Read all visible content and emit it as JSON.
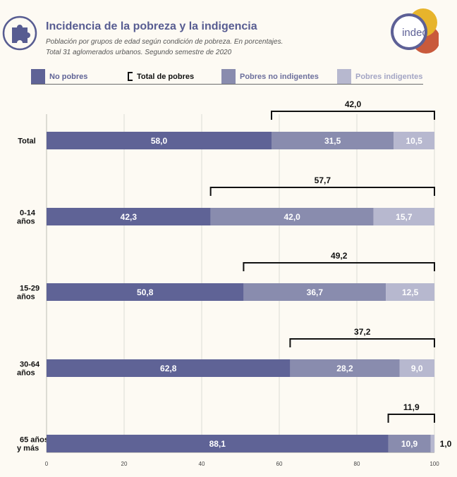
{
  "header": {
    "title": "Incidencia de la pobreza y la indigencia",
    "subtitle_line1": "Población por grupos de edad según condición de pobreza. En porcentajes.",
    "subtitle_line2": "Total 31 aglomerados urbanos. Segundo semestre de 2020",
    "logo_text": "indec"
  },
  "legend": [
    {
      "label": "No pobres",
      "color": "#5f6396",
      "kind": "swatch"
    },
    {
      "label": "Total de pobres",
      "color": "#111111",
      "kind": "bracket"
    },
    {
      "label": "Pobres no indigentes",
      "color": "#898cae",
      "kind": "swatch"
    },
    {
      "label": "Pobres indigentes",
      "color": "#b7b8cf",
      "kind": "swatch"
    }
  ],
  "chart_data": {
    "type": "bar",
    "orientation": "horizontal",
    "stacked": true,
    "categories": [
      "Total",
      "0-14\naños",
      "15-29\naños",
      "30-64\naños",
      "65 años\ny más"
    ],
    "series": [
      {
        "name": "No pobres",
        "values": [
          58.0,
          42.3,
          50.8,
          62.8,
          88.1
        ],
        "labels": [
          "58,0",
          "42,3",
          "50,8",
          "62,8",
          "88,1"
        ],
        "color": "#5f6396"
      },
      {
        "name": "Pobres no indigentes",
        "values": [
          31.5,
          42.0,
          36.7,
          28.2,
          10.9
        ],
        "labels": [
          "31,5",
          "42,0",
          "36,7",
          "28,2",
          "10,9"
        ],
        "color": "#898cae"
      },
      {
        "name": "Pobres indigentes",
        "values": [
          10.5,
          15.7,
          12.5,
          9.0,
          1.0
        ],
        "labels": [
          "10,5",
          "15,7",
          "12,5",
          "9,0",
          "1,0"
        ],
        "color": "#b7b8cf"
      }
    ],
    "total_pobres": {
      "name": "Total de pobres",
      "values": [
        42.0,
        57.7,
        49.2,
        37.2,
        11.9
      ],
      "labels": [
        "42,0",
        "57,7",
        "49,2",
        "37,2",
        "11,9"
      ]
    },
    "xlim": [
      0,
      100
    ],
    "xticks": [
      0,
      20,
      40,
      60,
      80,
      100
    ],
    "grid": true,
    "legend_position": "top"
  }
}
